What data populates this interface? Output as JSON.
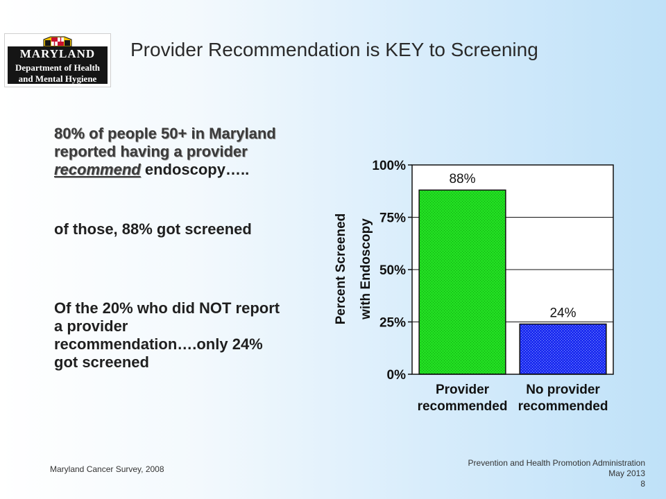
{
  "logo": {
    "line1": "MARYLAND",
    "line2": "Department of Health",
    "line3": "and Mental Hygiene",
    "colors": {
      "gold": "#f2c200",
      "red": "#c8102e",
      "black": "#151515"
    }
  },
  "title": "Provider Recommendation is KEY to Screening",
  "text1": {
    "a": "80% of people 50+ in Maryland reported having a provider ",
    "b": "recommend",
    "c": " endoscopy….."
  },
  "text2": "of those, 88% got screened",
  "text3": "Of the 20% who did NOT report a provider recommendation….only 24% got screened",
  "chart_data": {
    "type": "bar",
    "categories": [
      [
        "Provider",
        "recommended"
      ],
      [
        "No provider",
        "recommended"
      ]
    ],
    "values": [
      88,
      24
    ],
    "data_labels": [
      "88%",
      "24%"
    ],
    "ylabel": [
      "Percent Screened",
      "with Endoscopy"
    ],
    "ylim": [
      0,
      100
    ],
    "yticks": [
      0,
      25,
      50,
      75,
      100
    ],
    "ytick_labels": [
      "0%",
      "25%",
      "50%",
      "75%",
      "100%"
    ],
    "grid": true,
    "legend": "none",
    "colors": [
      "#22dd22",
      "#1c2cf0"
    ]
  },
  "footer": {
    "left": "Maryland Cancer Survey, 2008",
    "right_line1": "Prevention and Health Promotion Administration",
    "right_line2": "May 2013",
    "page": "8"
  }
}
